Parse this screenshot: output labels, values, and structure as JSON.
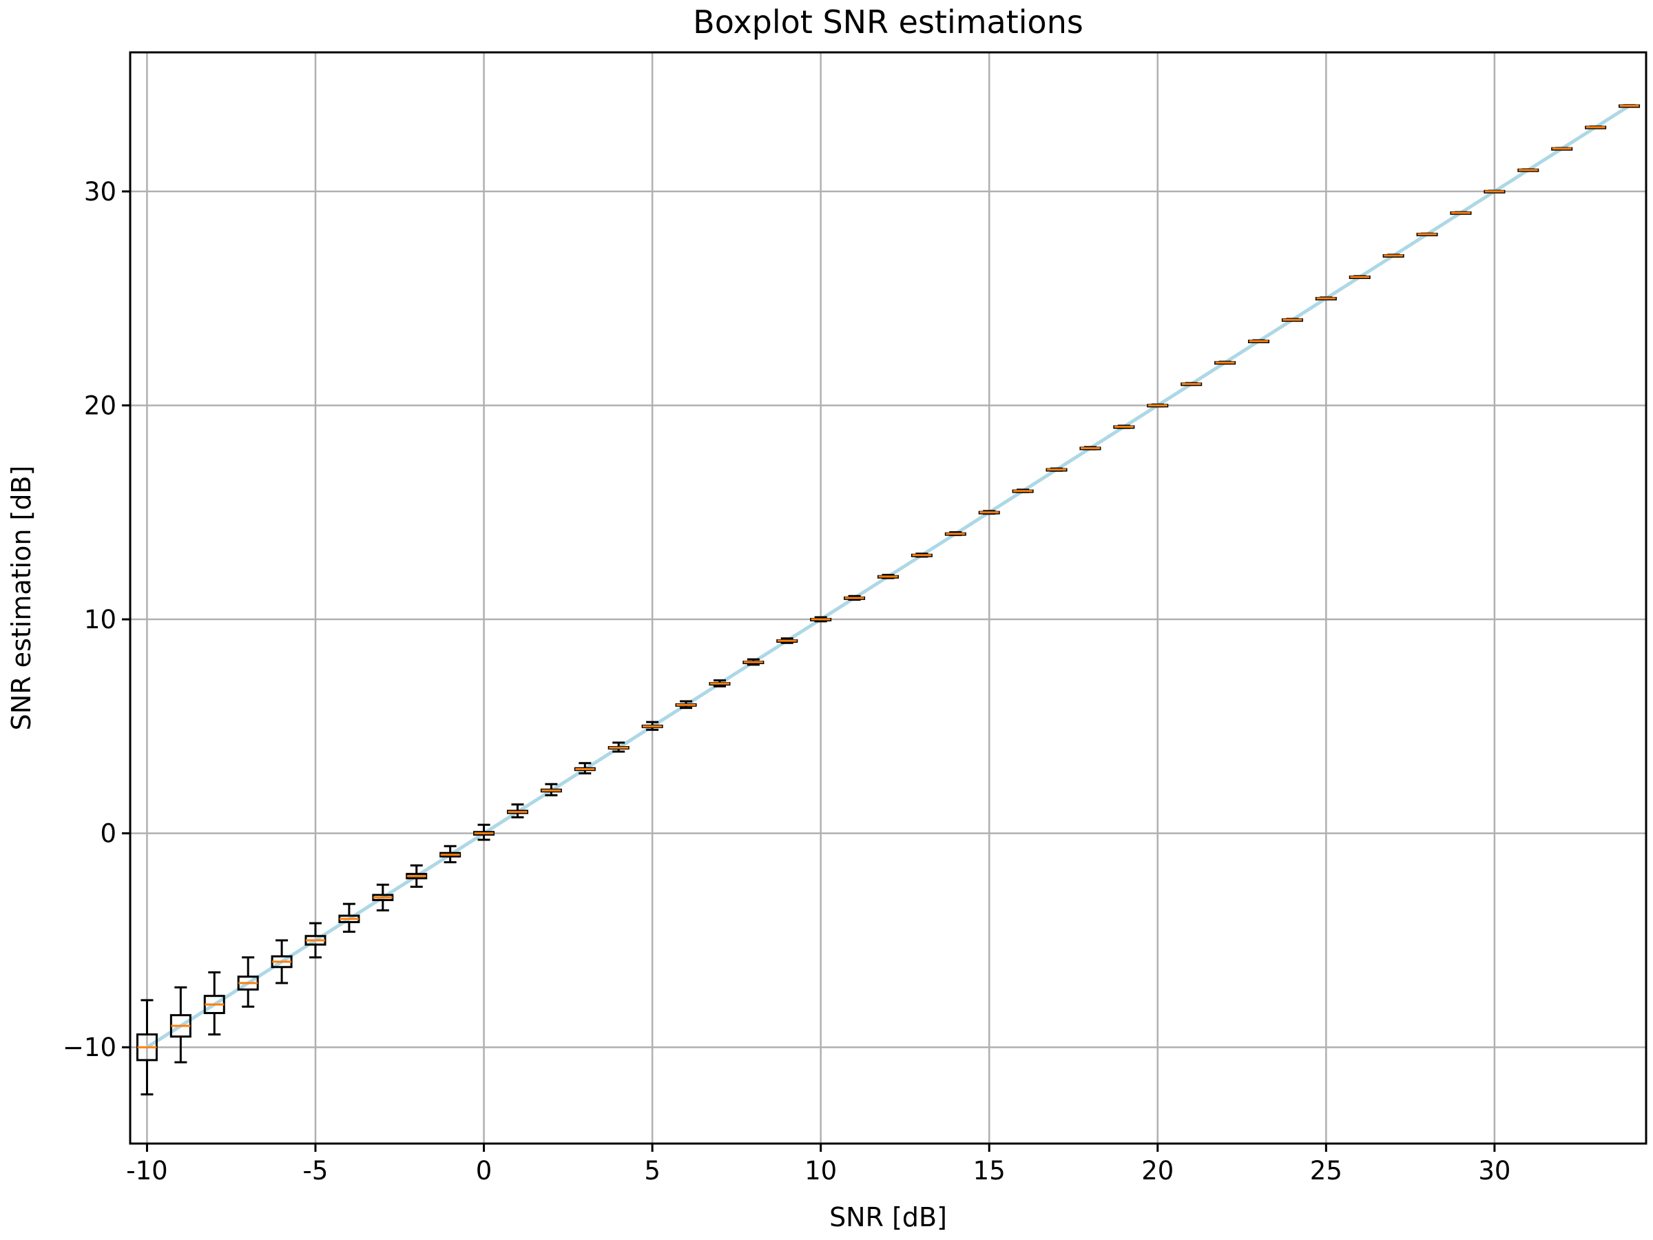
{
  "chart_data": {
    "type": "box",
    "title": "Boxplot SNR estimations",
    "xlabel": "SNR [dB]",
    "ylabel": "SNR estimation [dB]",
    "xlim": [
      -10.5,
      34.5
    ],
    "ylim": [
      -14.5,
      36.5
    ],
    "grid": true,
    "xticks": [
      -10,
      -5,
      0,
      5,
      10,
      15,
      20,
      25,
      30
    ],
    "xtick_labels": [
      "-10",
      "-5",
      "0",
      "5",
      "10",
      "15",
      "20",
      "25",
      "30"
    ],
    "yticks": [
      -10,
      0,
      10,
      20,
      30
    ],
    "ytick_labels": [
      "−10",
      "0",
      "10",
      "20",
      "30"
    ],
    "line": {
      "color": "#add8e6",
      "x": [
        -10,
        34
      ],
      "y": [
        -10,
        34
      ]
    },
    "box_colors": {
      "box": "#000000",
      "median": "#ff7f0e"
    },
    "boxes": [
      {
        "x": -10,
        "whislo": -12.2,
        "q1": -10.6,
        "med": -10.0,
        "q3": -9.4,
        "whishi": -7.8
      },
      {
        "x": -9,
        "whislo": -10.7,
        "q1": -9.5,
        "med": -9.0,
        "q3": -8.5,
        "whishi": -7.2
      },
      {
        "x": -8,
        "whislo": -9.4,
        "q1": -8.4,
        "med": -8.0,
        "q3": -7.6,
        "whishi": -6.5
      },
      {
        "x": -7,
        "whislo": -8.1,
        "q1": -7.3,
        "med": -7.0,
        "q3": -6.7,
        "whishi": -5.8
      },
      {
        "x": -6,
        "whislo": -7.0,
        "q1": -6.25,
        "med": -6.0,
        "q3": -5.75,
        "whishi": -5.0
      },
      {
        "x": -5,
        "whislo": -5.8,
        "q1": -5.2,
        "med": -5.0,
        "q3": -4.8,
        "whishi": -4.2
      },
      {
        "x": -4,
        "whislo": -4.6,
        "q1": -4.15,
        "med": -4.0,
        "q3": -3.85,
        "whishi": -3.3
      },
      {
        "x": -3,
        "whislo": -3.6,
        "q1": -3.12,
        "med": -3.0,
        "q3": -2.88,
        "whishi": -2.4
      },
      {
        "x": -2,
        "whislo": -2.5,
        "q1": -2.1,
        "med": -2.0,
        "q3": -1.9,
        "whishi": -1.5
      },
      {
        "x": -1,
        "whislo": -1.35,
        "q1": -1.08,
        "med": -1.0,
        "q3": -0.92,
        "whishi": -0.6
      },
      {
        "x": 0,
        "whislo": -0.3,
        "q1": -0.06,
        "med": 0.0,
        "q3": 0.06,
        "whishi": 0.4
      },
      {
        "x": 1,
        "whislo": 0.75,
        "q1": 0.95,
        "med": 1.0,
        "q3": 1.05,
        "whishi": 1.35
      },
      {
        "x": 2,
        "whislo": 1.78,
        "q1": 1.96,
        "med": 2.0,
        "q3": 2.04,
        "whishi": 2.3
      },
      {
        "x": 3,
        "whislo": 2.8,
        "q1": 2.96,
        "med": 3.0,
        "q3": 3.04,
        "whishi": 3.28
      },
      {
        "x": 4,
        "whislo": 3.82,
        "q1": 3.97,
        "med": 4.0,
        "q3": 4.03,
        "whishi": 4.24
      },
      {
        "x": 5,
        "whislo": 4.84,
        "q1": 4.97,
        "med": 5.0,
        "q3": 5.03,
        "whishi": 5.2
      },
      {
        "x": 6,
        "whislo": 5.86,
        "q1": 5.97,
        "med": 6.0,
        "q3": 6.03,
        "whishi": 6.17
      },
      {
        "x": 7,
        "whislo": 6.87,
        "q1": 6.98,
        "med": 7.0,
        "q3": 7.02,
        "whishi": 7.15
      },
      {
        "x": 8,
        "whislo": 7.88,
        "q1": 7.98,
        "med": 8.0,
        "q3": 8.02,
        "whishi": 8.13
      },
      {
        "x": 9,
        "whislo": 8.9,
        "q1": 8.98,
        "med": 9.0,
        "q3": 9.02,
        "whishi": 9.11
      },
      {
        "x": 10,
        "whislo": 9.91,
        "q1": 9.98,
        "med": 10.0,
        "q3": 10.02,
        "whishi": 10.1
      },
      {
        "x": 11,
        "whislo": 10.92,
        "q1": 10.98,
        "med": 11.0,
        "q3": 11.02,
        "whishi": 11.09
      },
      {
        "x": 12,
        "whislo": 11.93,
        "q1": 11.98,
        "med": 12.0,
        "q3": 12.02,
        "whishi": 12.08
      },
      {
        "x": 13,
        "whislo": 12.93,
        "q1": 12.98,
        "med": 13.0,
        "q3": 13.02,
        "whishi": 13.07
      },
      {
        "x": 14,
        "whislo": 13.94,
        "q1": 13.98,
        "med": 14.0,
        "q3": 14.02,
        "whishi": 14.07
      },
      {
        "x": 15,
        "whislo": 14.94,
        "q1": 14.98,
        "med": 15.0,
        "q3": 15.02,
        "whishi": 15.06
      },
      {
        "x": 16,
        "whislo": 15.95,
        "q1": 15.98,
        "med": 16.0,
        "q3": 16.02,
        "whishi": 16.06
      },
      {
        "x": 17,
        "whislo": 16.95,
        "q1": 16.98,
        "med": 17.0,
        "q3": 17.02,
        "whishi": 17.05
      },
      {
        "x": 18,
        "whislo": 17.95,
        "q1": 17.98,
        "med": 18.0,
        "q3": 18.02,
        "whishi": 18.05
      },
      {
        "x": 19,
        "whislo": 18.95,
        "q1": 18.98,
        "med": 19.0,
        "q3": 19.02,
        "whishi": 19.05
      },
      {
        "x": 20,
        "whislo": 19.96,
        "q1": 19.98,
        "med": 20.0,
        "q3": 20.02,
        "whishi": 20.04
      },
      {
        "x": 21,
        "whislo": 20.96,
        "q1": 20.98,
        "med": 21.0,
        "q3": 21.02,
        "whishi": 21.04
      },
      {
        "x": 22,
        "whislo": 21.96,
        "q1": 21.98,
        "med": 22.0,
        "q3": 22.02,
        "whishi": 22.04
      },
      {
        "x": 23,
        "whislo": 22.96,
        "q1": 22.98,
        "med": 23.0,
        "q3": 23.02,
        "whishi": 23.04
      },
      {
        "x": 24,
        "whislo": 23.96,
        "q1": 23.98,
        "med": 24.0,
        "q3": 24.02,
        "whishi": 24.04
      },
      {
        "x": 25,
        "whislo": 24.96,
        "q1": 24.98,
        "med": 25.0,
        "q3": 25.02,
        "whishi": 25.04
      },
      {
        "x": 26,
        "whislo": 25.96,
        "q1": 25.98,
        "med": 26.0,
        "q3": 26.02,
        "whishi": 26.04
      },
      {
        "x": 27,
        "whislo": 26.96,
        "q1": 26.98,
        "med": 27.0,
        "q3": 27.02,
        "whishi": 27.04
      },
      {
        "x": 28,
        "whislo": 27.97,
        "q1": 27.98,
        "med": 28.0,
        "q3": 28.02,
        "whishi": 28.03
      },
      {
        "x": 29,
        "whislo": 28.97,
        "q1": 28.98,
        "med": 29.0,
        "q3": 29.02,
        "whishi": 29.03
      },
      {
        "x": 30,
        "whislo": 29.97,
        "q1": 29.98,
        "med": 30.0,
        "q3": 30.02,
        "whishi": 30.03
      },
      {
        "x": 31,
        "whislo": 30.97,
        "q1": 30.98,
        "med": 31.0,
        "q3": 31.02,
        "whishi": 31.03
      },
      {
        "x": 32,
        "whislo": 31.97,
        "q1": 31.98,
        "med": 32.0,
        "q3": 32.02,
        "whishi": 32.03
      },
      {
        "x": 33,
        "whislo": 32.97,
        "q1": 32.98,
        "med": 33.0,
        "q3": 33.02,
        "whishi": 33.03
      },
      {
        "x": 34,
        "whislo": 33.97,
        "q1": 33.98,
        "med": 34.0,
        "q3": 34.02,
        "whishi": 34.03
      }
    ]
  }
}
